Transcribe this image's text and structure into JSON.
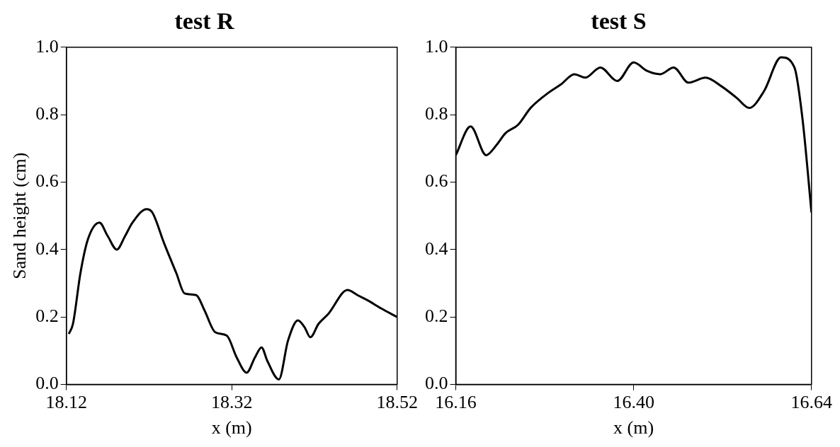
{
  "chart_data": [
    {
      "type": "line",
      "title": "test R",
      "xlabel": "x (m)",
      "ylabel": "Sand height (cm)",
      "xlim": [
        18.12,
        18.52
      ],
      "xticks": [
        18.12,
        18.32,
        18.52
      ],
      "ylim": [
        0,
        1
      ],
      "yticks": [
        {
          "value": 0,
          "label": "0.0"
        },
        {
          "value": 0.2,
          "label": "0.2"
        },
        {
          "value": 0.4,
          "label": "0.4"
        },
        {
          "value": 0.6,
          "label": "0.6"
        },
        {
          "value": 0.8,
          "label": "0.8"
        },
        {
          "value": 1,
          "label": "1.0"
        }
      ],
      "grid": false,
      "legend": false,
      "marker": "none",
      "line_style": "solid",
      "series": [
        {
          "color": "#000000",
          "x": [
            18.123,
            18.128,
            18.137,
            18.146,
            18.16,
            18.17,
            18.181,
            18.191,
            18.2,
            18.217,
            18.224,
            18.238,
            18.253,
            18.263,
            18.277,
            18.287,
            18.3,
            18.314,
            18.326,
            18.338,
            18.348,
            18.356,
            18.363,
            18.377,
            18.388,
            18.4,
            18.408,
            18.415,
            18.425,
            18.437,
            18.46,
            18.472,
            18.484,
            18.501,
            18.52
          ],
          "values": [
            0.15,
            0.18,
            0.33,
            0.43,
            0.48,
            0.44,
            0.4,
            0.44,
            0.48,
            0.52,
            0.51,
            0.42,
            0.33,
            0.27,
            0.265,
            0.22,
            0.155,
            0.145,
            0.08,
            0.035,
            0.08,
            0.11,
            0.07,
            0.015,
            0.13,
            0.19,
            0.17,
            0.14,
            0.18,
            0.21,
            0.28,
            0.265,
            0.25,
            0.225,
            0.2
          ]
        }
      ]
    },
    {
      "type": "line",
      "title": "test S",
      "xlabel": "x (m)",
      "xlim": [
        16.16,
        16.64
      ],
      "xticks": [
        16.16,
        {
          "value": 16.4,
          "label": "16.40"
        },
        16.64
      ],
      "ylim": [
        0,
        1
      ],
      "yticks": [
        {
          "value": 0,
          "label": "0.0"
        },
        {
          "value": 0.2,
          "label": "0.2"
        },
        {
          "value": 0.4,
          "label": "0.4"
        },
        {
          "value": 0.6,
          "label": "0.6"
        },
        {
          "value": 0.8,
          "label": "0.8"
        },
        {
          "value": 1,
          "label": "1.0"
        }
      ],
      "grid": false,
      "legend": false,
      "marker": "none",
      "line_style": "solid",
      "series": [
        {
          "color": "#000000",
          "x": [
            16.16,
            16.18,
            16.201,
            16.215,
            16.227,
            16.244,
            16.261,
            16.285,
            16.302,
            16.32,
            16.335,
            16.355,
            16.378,
            16.4,
            16.418,
            16.436,
            16.454,
            16.474,
            16.497,
            16.518,
            16.539,
            16.556,
            16.576,
            16.599,
            16.617,
            16.628,
            16.64
          ],
          "values": [
            0.68,
            0.765,
            0.68,
            0.71,
            0.745,
            0.77,
            0.82,
            0.865,
            0.89,
            0.92,
            0.91,
            0.94,
            0.9,
            0.955,
            0.93,
            0.92,
            0.94,
            0.895,
            0.91,
            0.885,
            0.85,
            0.82,
            0.87,
            0.97,
            0.94,
            0.785,
            0.51
          ]
        }
      ]
    }
  ]
}
